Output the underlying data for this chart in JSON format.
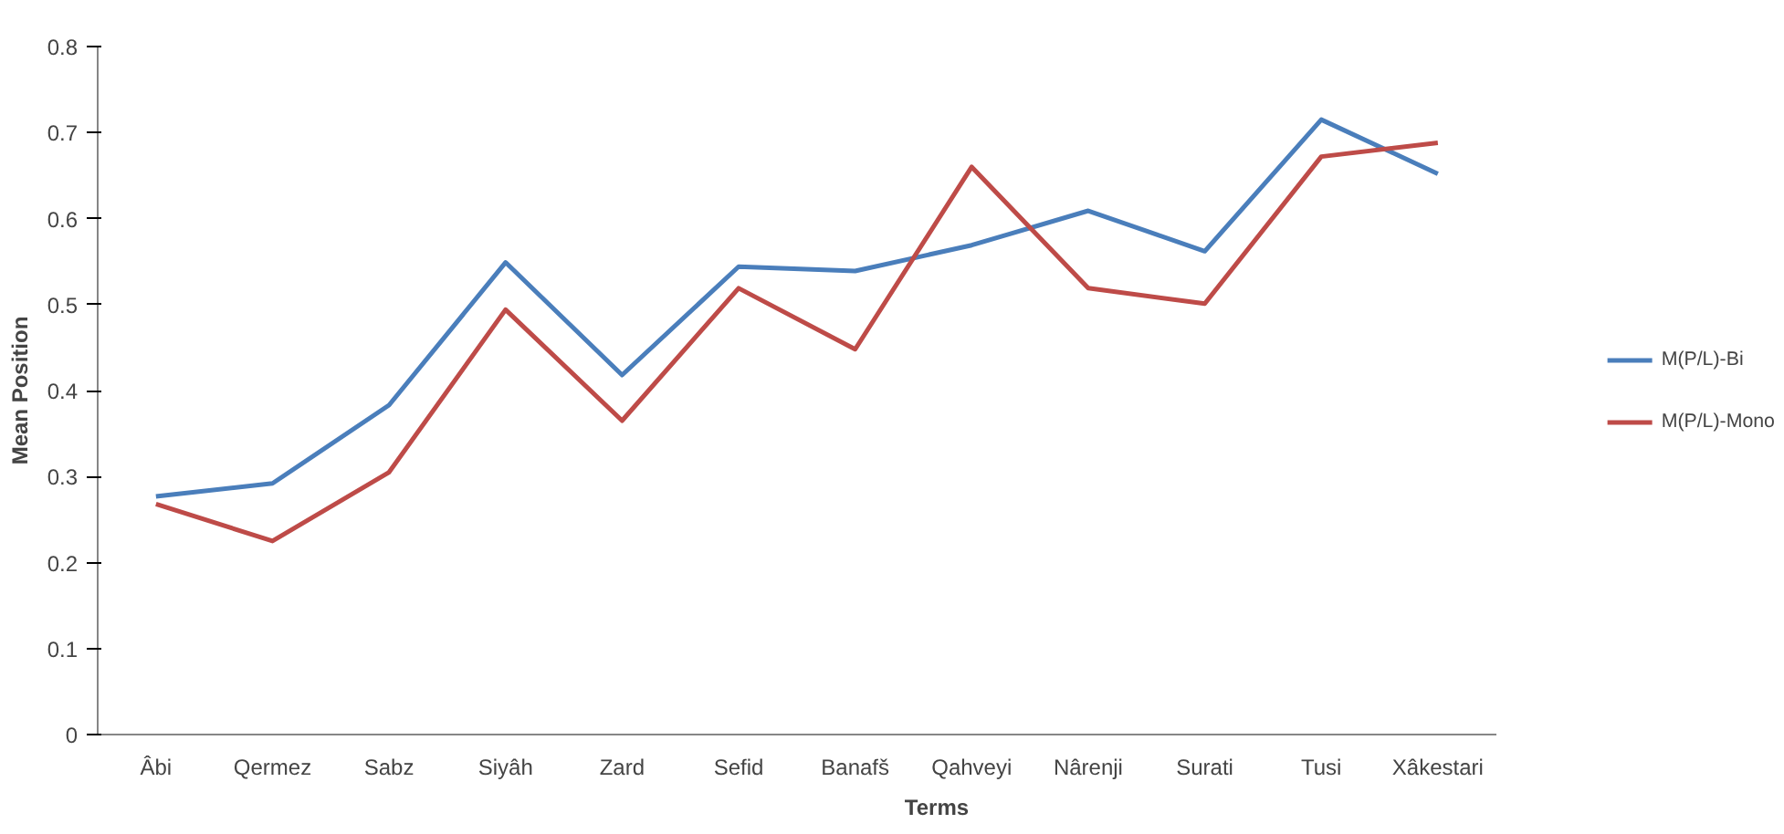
{
  "chart_data": {
    "type": "line",
    "xlabel": "Terms",
    "ylabel": "Mean Position",
    "categories": [
      "Âbi",
      "Qermez",
      "Sabz",
      "Siyâh",
      "Zard",
      "Sefid",
      "Banafš",
      "Qahveyi",
      "Nârenji",
      "Surati",
      "Tusi",
      "Xâkestari"
    ],
    "series": [
      {
        "name": "M(P/L)-Bi",
        "color": "#4a7ebb",
        "values": [
          0.277,
          0.292,
          0.383,
          0.549,
          0.418,
          0.544,
          0.539,
          0.569,
          0.609,
          0.562,
          0.715,
          0.652
        ]
      },
      {
        "name": "M(P/L)-Mono",
        "color": "#be4b48",
        "values": [
          0.268,
          0.225,
          0.305,
          0.494,
          0.365,
          0.519,
          0.448,
          0.66,
          0.519,
          0.501,
          0.672,
          0.688
        ]
      }
    ],
    "ylim": [
      0,
      0.8
    ],
    "yticks": [
      0,
      0.1,
      0.2,
      0.3,
      0.4,
      0.5,
      0.6,
      0.7,
      0.8
    ],
    "grid": false,
    "legend": "right",
    "marker": "none",
    "line_style": "solid"
  }
}
